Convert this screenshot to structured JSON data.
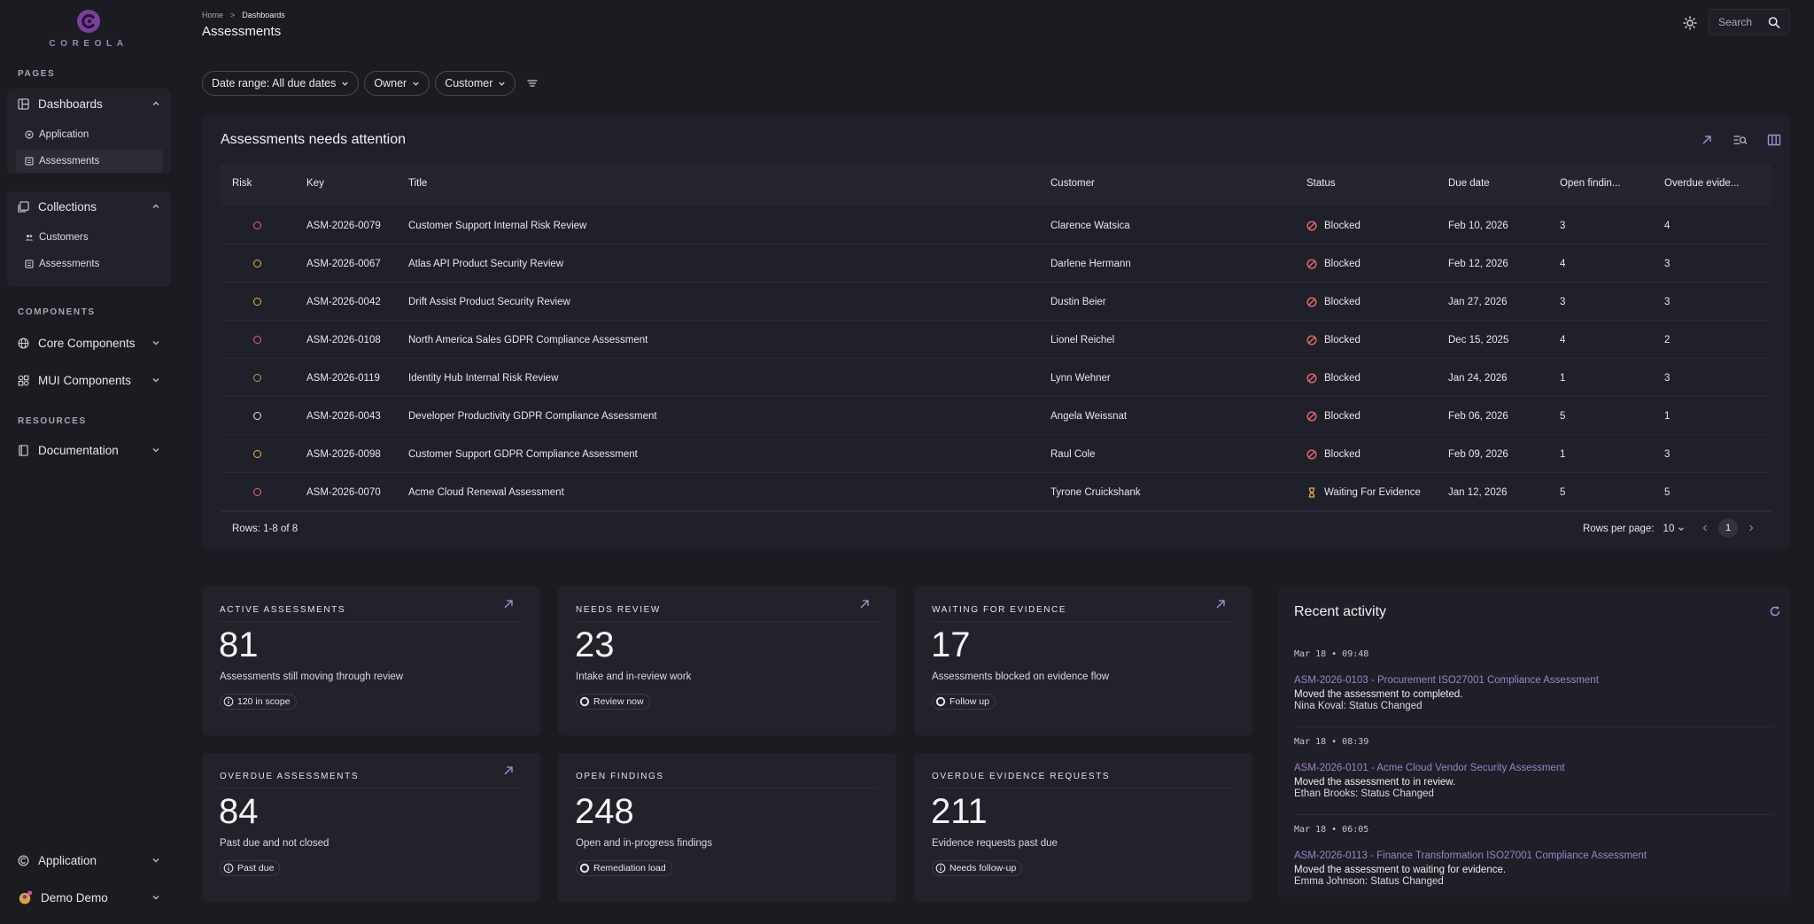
{
  "app": {
    "brand": "COREOLA"
  },
  "sidebar": {
    "sections": {
      "pages": "PAGES",
      "components": "COMPONENTS",
      "resources": "RESOURCES"
    },
    "dashboards": {
      "label": "Dashboards",
      "items": [
        {
          "label": "Application"
        },
        {
          "label": "Assessments",
          "active": true
        }
      ]
    },
    "collections": {
      "label": "Collections",
      "items": [
        {
          "label": "Customers"
        },
        {
          "label": "Assessments"
        }
      ]
    },
    "core_components": "Core Components",
    "mui_components": "MUI Components",
    "documentation": "Documentation",
    "footer": {
      "application": "Application",
      "user": "Demo Demo"
    }
  },
  "header": {
    "breadcrumb": {
      "home": "Home",
      "separator": ">",
      "current": "Dashboards"
    },
    "title": "Assessments",
    "search_placeholder": "Search"
  },
  "filters": [
    "Date range: All due dates",
    "Owner",
    "Customer"
  ],
  "table": {
    "title": "Assessments needs attention",
    "columns": [
      "Risk",
      "Key",
      "Title",
      "Customer",
      "Status",
      "Due date",
      "Open findin...",
      "Overdue evide..."
    ],
    "rows": [
      {
        "risk": "high",
        "key": "ASM-2026-0079",
        "title": "Customer Support Internal Risk Review",
        "customer": "Clarence Watsica",
        "status": "Blocked",
        "due": "Feb 10, 2026",
        "open": "3",
        "overdue": "4"
      },
      {
        "risk": "medium",
        "key": "ASM-2026-0067",
        "title": "Atlas API Product Security Review",
        "customer": "Darlene Hermann",
        "status": "Blocked",
        "due": "Feb 12, 2026",
        "open": "4",
        "overdue": "3"
      },
      {
        "risk": "medium",
        "key": "ASM-2026-0042",
        "title": "Drift Assist Product Security Review",
        "customer": "Dustin Beier",
        "status": "Blocked",
        "due": "Jan 27, 2026",
        "open": "3",
        "overdue": "3"
      },
      {
        "risk": "high",
        "key": "ASM-2026-0108",
        "title": "North America Sales GDPR Compliance Assessment",
        "customer": "Lionel Reichel",
        "status": "Blocked",
        "due": "Dec 15, 2025",
        "open": "4",
        "overdue": "2"
      },
      {
        "risk": "low",
        "key": "ASM-2026-0119",
        "title": "Identity Hub Internal Risk Review",
        "customer": "Lynn Wehner",
        "status": "Blocked",
        "due": "Jan 24, 2026",
        "open": "1",
        "overdue": "3"
      },
      {
        "risk": "none",
        "key": "ASM-2026-0043",
        "title": "Developer Productivity GDPR Compliance Assessment",
        "customer": "Angela Weissnat",
        "status": "Blocked",
        "due": "Feb 06, 2026",
        "open": "5",
        "overdue": "1"
      },
      {
        "risk": "medium",
        "key": "ASM-2026-0098",
        "title": "Customer Support GDPR Compliance Assessment",
        "customer": "Raul Cole",
        "status": "Blocked",
        "due": "Feb 09, 2026",
        "open": "1",
        "overdue": "3"
      },
      {
        "risk": "high",
        "key": "ASM-2026-0070",
        "title": "Acme Cloud Renewal Assessment",
        "customer": "Tyrone Cruickshank",
        "status": "Waiting For Evidence",
        "due": "Jan 12, 2026",
        "open": "5",
        "overdue": "5"
      }
    ],
    "rows_count": "Rows: 1-8 of 8",
    "rows_per_page_label": "Rows per page:",
    "rows_per_page": "10",
    "page": "1"
  },
  "risk_colors": {
    "high": "#e86a6a",
    "medium": "#e8b43c",
    "low": "#9bb04a",
    "none": "#e6e6ea"
  },
  "stats": [
    {
      "label": "ACTIVE ASSESSMENTS",
      "value": "81",
      "desc": "Assessments still moving through review",
      "badge": "120 in scope",
      "badge_icon": "info-icon",
      "link": true
    },
    {
      "label": "NEEDS REVIEW",
      "value": "23",
      "desc": "Intake and in-review work",
      "badge": "Review now",
      "badge_icon": "ring-icon",
      "link": true
    },
    {
      "label": "WAITING FOR EVIDENCE",
      "value": "17",
      "desc": "Assessments blocked on evidence flow",
      "badge": "Follow up",
      "badge_icon": "ring-icon",
      "link": true
    },
    {
      "label": "OVERDUE ASSESSMENTS",
      "value": "84",
      "desc": "Past due and not closed",
      "badge": "Past due",
      "badge_icon": "info-icon",
      "link": true
    },
    {
      "label": "OPEN FINDINGS",
      "value": "248",
      "desc": "Open and in-progress findings",
      "badge": "Remediation load",
      "badge_icon": "ring-icon",
      "link": false
    },
    {
      "label": "OVERDUE EVIDENCE REQUESTS",
      "value": "211",
      "desc": "Evidence requests past due",
      "badge": "Needs follow-up",
      "badge_icon": "info-icon",
      "link": false
    }
  ],
  "activity": {
    "title": "Recent activity",
    "items": [
      {
        "time": "Mar 18 • 09:48",
        "link": "ASM-2026-0103 - Procurement ISO27001 Compliance Assessment",
        "message": "Moved the assessment to completed.",
        "who": "Nina Koval: Status Changed"
      },
      {
        "time": "Mar 18 • 08:39",
        "link": "ASM-2026-0101 - Acme Cloud Vendor Security Assessment",
        "message": "Moved the assessment to in review.",
        "who": "Ethan Brooks: Status Changed"
      },
      {
        "time": "Mar 18 • 06:05",
        "link": "ASM-2026-0113 - Finance Transformation ISO27001 Compliance Assessment",
        "message": "Moved the assessment to waiting for evidence.",
        "who": "Emma Johnson: Status Changed"
      }
    ]
  }
}
